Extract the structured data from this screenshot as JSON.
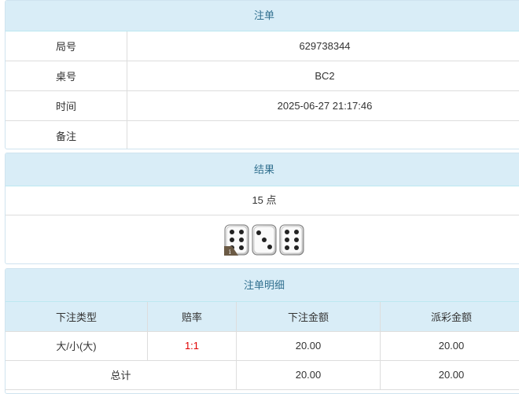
{
  "order": {
    "title": "注单",
    "rows": [
      {
        "label": "局号",
        "value": "629738344"
      },
      {
        "label": "桌号",
        "value": "BC2"
      },
      {
        "label": "时间",
        "value": "2025-06-27 21:17:46"
      },
      {
        "label": "备注",
        "value": ""
      }
    ]
  },
  "result": {
    "title": "结果",
    "points": "15 点",
    "dice": [
      6,
      3,
      6
    ],
    "badge": "i"
  },
  "detail": {
    "title": "注单明细",
    "headers": [
      "下注类型",
      "赔率",
      "下注金额",
      "派彩金额"
    ],
    "row": {
      "type": "大/小(大)",
      "odds": "1:1",
      "bet": "20.00",
      "payout": "20.00"
    },
    "total": {
      "label": "总计",
      "bet": "20.00",
      "payout": "20.00"
    },
    "odds_color": "#e00000"
  }
}
